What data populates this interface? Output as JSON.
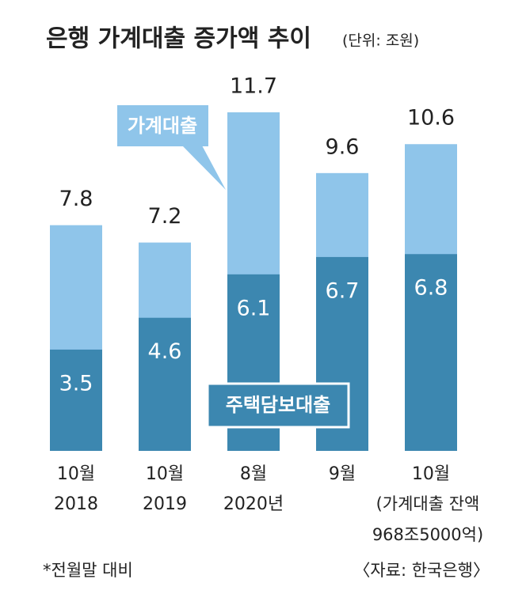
{
  "chart_data": {
    "type": "bar",
    "title": "은행 가계대출 증가액 추이",
    "unit": "(단위: 조원)",
    "categories": [
      "10월",
      "10월",
      "8월",
      "9월",
      "10월"
    ],
    "category_years": [
      "2018",
      "2019",
      "2020년",
      null,
      null
    ],
    "series": [
      {
        "name": "가계대출",
        "color": "#8fc5ea",
        "values": [
          7.8,
          7.2,
          11.7,
          9.6,
          10.6
        ]
      },
      {
        "name": "주택담보대출",
        "color": "#3c87b0",
        "values": [
          3.5,
          4.6,
          6.1,
          6.7,
          6.8
        ]
      }
    ],
    "annotations": [
      "(가계대출 잔액",
      "968조5000억)"
    ],
    "footnote": "*전월말 대비",
    "source": "〈자료: 한국은행〉"
  }
}
